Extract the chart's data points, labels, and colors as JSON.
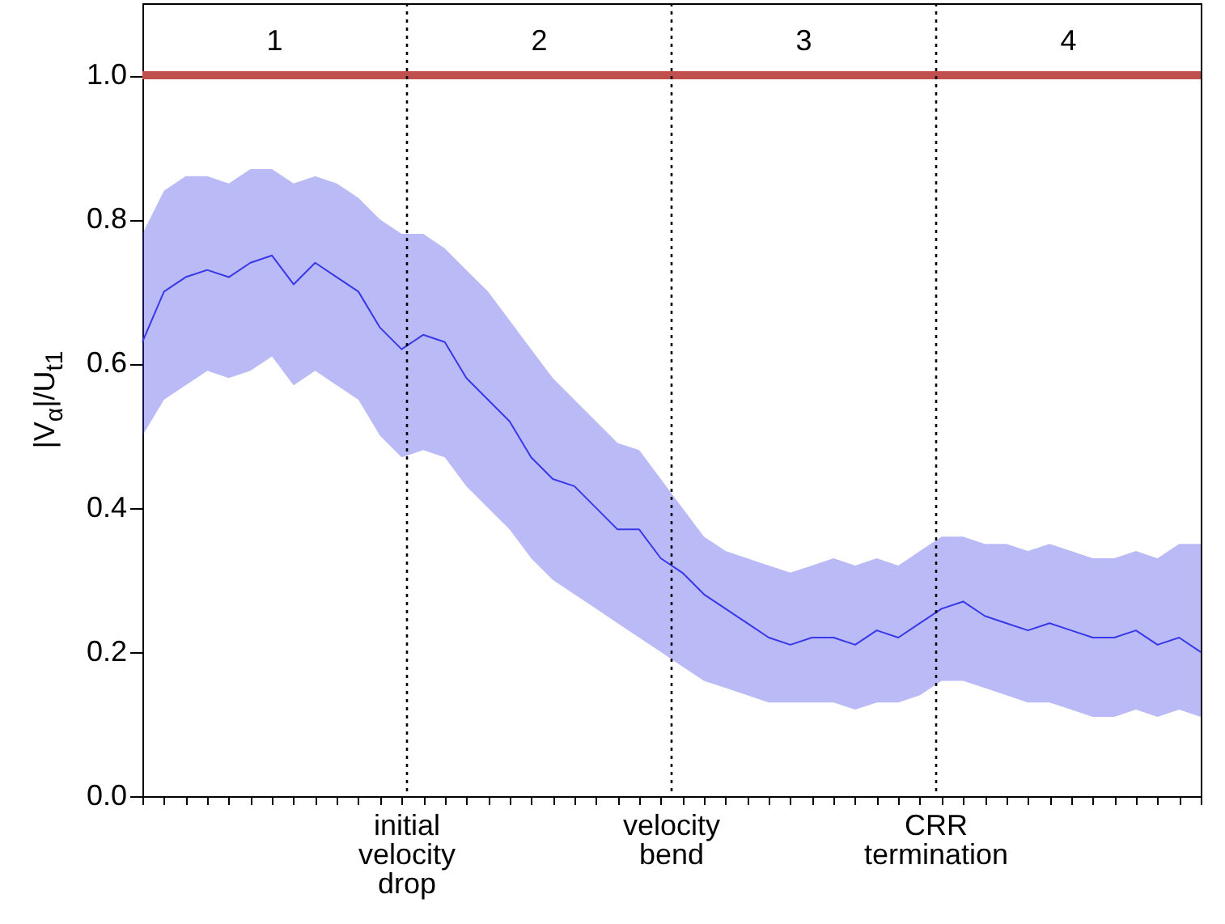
{
  "chart_data": {
    "type": "line",
    "ylabel": "|V$_{α}$|/U$_{t1}$",
    "categories": [
      null,
      null,
      null,
      null,
      null,
      null,
      null,
      null,
      null,
      null,
      null,
      null,
      null,
      null,
      null,
      null,
      null,
      null,
      null,
      null,
      null,
      null,
      null,
      null,
      null,
      null,
      null,
      null,
      null,
      null,
      null,
      null,
      null,
      null,
      null,
      null,
      null,
      null,
      null,
      null,
      null,
      null,
      null,
      null,
      null,
      null,
      null,
      null,
      null,
      null
    ],
    "series": [
      {
        "color": "#3838e8",
        "values": [
          0.63,
          0.7,
          0.72,
          0.73,
          0.72,
          0.74,
          0.75,
          0.71,
          0.74,
          0.72,
          0.7,
          0.65,
          0.62,
          0.64,
          0.63,
          0.58,
          0.55,
          0.52,
          0.47,
          0.44,
          0.43,
          0.4,
          0.37,
          0.37,
          0.33,
          0.31,
          0.28,
          0.26,
          0.24,
          0.22,
          0.21,
          0.22,
          0.22,
          0.21,
          0.23,
          0.22,
          0.24,
          0.26,
          0.27,
          0.25,
          0.24,
          0.23,
          0.24,
          0.23,
          0.22,
          0.22,
          0.23,
          0.21,
          0.22,
          0.2
        ],
        "upper": [
          0.78,
          0.84,
          0.86,
          0.86,
          0.85,
          0.87,
          0.87,
          0.85,
          0.86,
          0.85,
          0.83,
          0.8,
          0.78,
          0.78,
          0.76,
          0.73,
          0.7,
          0.66,
          0.62,
          0.58,
          0.55,
          0.52,
          0.49,
          0.48,
          0.44,
          0.4,
          0.36,
          0.34,
          0.33,
          0.32,
          0.31,
          0.32,
          0.33,
          0.32,
          0.33,
          0.32,
          0.34,
          0.36,
          0.36,
          0.35,
          0.35,
          0.34,
          0.35,
          0.34,
          0.33,
          0.33,
          0.34,
          0.33,
          0.35,
          0.35
        ],
        "lower": [
          0.5,
          0.55,
          0.57,
          0.59,
          0.58,
          0.59,
          0.61,
          0.57,
          0.59,
          0.57,
          0.55,
          0.5,
          0.47,
          0.48,
          0.47,
          0.43,
          0.4,
          0.37,
          0.33,
          0.3,
          0.28,
          0.26,
          0.24,
          0.22,
          0.2,
          0.18,
          0.16,
          0.15,
          0.14,
          0.13,
          0.13,
          0.13,
          0.13,
          0.12,
          0.13,
          0.13,
          0.14,
          0.16,
          0.16,
          0.15,
          0.14,
          0.13,
          0.13,
          0.12,
          0.11,
          0.11,
          0.12,
          0.11,
          0.12,
          0.11
        ]
      }
    ],
    "ylim": [
      0,
      1.1
    ],
    "yticks": [
      {
        "value": 0,
        "label": "0.0"
      },
      {
        "value": 0.2,
        "label": "0.2"
      },
      {
        "value": 0.4,
        "label": "0.4"
      },
      {
        "value": 0.6,
        "label": "0.6"
      },
      {
        "value": 0.8,
        "label": "0.8"
      },
      {
        "value": 1,
        "label": "1.0"
      }
    ],
    "tick_labels": "y",
    "ref_lines": [
      {
        "axis": "y",
        "value": 1.0,
        "color": "#c0504d",
        "line_style": "solid"
      }
    ],
    "annotations": [
      "1",
      "2",
      "3",
      "4",
      "initial velocity drop",
      "velocity bend",
      "CRR termination"
    ]
  }
}
